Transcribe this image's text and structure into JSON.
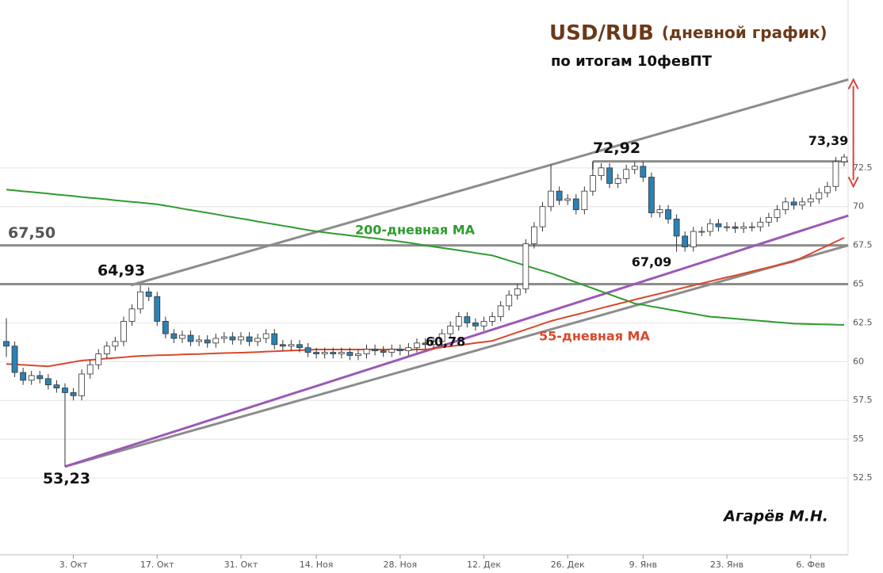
{
  "chart_data": {
    "type": "candlestick",
    "title": "USD/RUB",
    "title_note": "(дневной график)",
    "subtitle": "по итогам 10февПТ",
    "author": "Агарёв М.Н.",
    "categories": [
      null,
      null,
      null,
      null,
      null,
      null,
      null,
      null,
      "3. Окт",
      null,
      null,
      null,
      null,
      null,
      null,
      null,
      null,
      null,
      "17. Окт",
      null,
      null,
      null,
      null,
      null,
      null,
      null,
      null,
      null,
      "31. Окт",
      null,
      null,
      null,
      null,
      null,
      null,
      null,
      null,
      "14. Ноя",
      null,
      null,
      null,
      null,
      null,
      null,
      null,
      null,
      null,
      "28. Ноя",
      null,
      null,
      null,
      null,
      null,
      null,
      null,
      null,
      null,
      "12. Дек",
      null,
      null,
      null,
      null,
      null,
      null,
      null,
      null,
      null,
      "26. Дек",
      null,
      null,
      null,
      null,
      null,
      null,
      null,
      null,
      "9. Янв",
      null,
      null,
      null,
      null,
      null,
      null,
      null,
      null,
      null,
      "23. Янв",
      null,
      null,
      null,
      null,
      null,
      null,
      null,
      null,
      null,
      "6. Фев",
      null,
      null,
      null,
      null
    ],
    "candles": {
      "up_color": "#ffffff",
      "down_color": "#2a82b5",
      "edge_color": "#333333",
      "open": [
        61.3,
        61.0,
        59.3,
        58.8,
        59.1,
        58.9,
        58.5,
        58.3,
        58.0,
        57.8,
        59.2,
        59.8,
        60.5,
        61.0,
        61.3,
        62.6,
        63.4,
        64.5,
        64.2,
        62.6,
        61.8,
        61.5,
        61.7,
        61.3,
        61.4,
        61.2,
        61.5,
        61.6,
        61.4,
        61.6,
        61.3,
        61.5,
        61.8,
        61.1,
        61.0,
        61.1,
        60.9,
        60.6,
        60.5,
        60.6,
        60.5,
        60.6,
        60.4,
        60.5,
        60.8,
        60.7,
        60.6,
        60.8,
        60.7,
        60.9,
        61.2,
        61.1,
        61.3,
        61.8,
        62.3,
        62.9,
        62.5,
        62.3,
        62.6,
        62.9,
        63.6,
        64.3,
        64.7,
        67.6,
        68.7,
        70.0,
        71.0,
        70.4,
        70.5,
        69.8,
        71.0,
        72.0,
        72.5,
        71.5,
        71.8,
        72.4,
        72.6,
        71.9,
        69.6,
        69.8,
        69.2,
        68.1,
        67.4,
        68.4,
        68.4,
        68.9,
        68.7,
        68.7,
        68.6,
        68.7,
        68.7,
        69.0,
        69.3,
        69.8,
        70.3,
        70.1,
        70.3,
        70.5,
        70.9,
        71.3,
        72.9
      ],
      "high": [
        62.8,
        61.3,
        59.6,
        59.4,
        59.4,
        59.2,
        58.8,
        58.6,
        58.3,
        59.5,
        60.1,
        60.8,
        61.3,
        61.6,
        62.9,
        63.7,
        64.93,
        64.8,
        64.5,
        62.9,
        62.1,
        62.0,
        62.0,
        61.7,
        61.7,
        61.8,
        61.9,
        61.9,
        61.9,
        61.9,
        61.8,
        62.1,
        62.1,
        61.4,
        61.4,
        61.4,
        61.2,
        60.9,
        60.9,
        60.9,
        60.9,
        60.9,
        60.8,
        61.1,
        61.1,
        61.0,
        61.1,
        61.1,
        61.2,
        61.5,
        61.5,
        61.6,
        62.1,
        62.6,
        63.2,
        63.2,
        62.8,
        62.9,
        63.2,
        63.9,
        64.6,
        65.0,
        67.9,
        69.0,
        70.3,
        72.7,
        71.3,
        70.8,
        70.8,
        71.3,
        72.92,
        72.8,
        72.8,
        72.1,
        72.7,
        72.9,
        72.9,
        72.2,
        70.1,
        70.1,
        69.5,
        68.4,
        68.7,
        68.7,
        69.2,
        69.2,
        69.0,
        69.0,
        69.0,
        69.0,
        69.3,
        69.6,
        70.1,
        70.6,
        70.6,
        70.6,
        70.8,
        71.2,
        71.6,
        73.2,
        73.39
      ],
      "low": [
        60.3,
        59.0,
        58.5,
        58.5,
        58.6,
        58.2,
        58.0,
        53.23,
        57.5,
        57.5,
        58.9,
        59.5,
        60.2,
        60.7,
        61.0,
        62.3,
        63.1,
        63.9,
        62.3,
        61.5,
        61.2,
        61.2,
        61.0,
        61.0,
        60.9,
        60.9,
        61.2,
        61.1,
        61.1,
        61.0,
        61.0,
        61.2,
        60.8,
        60.7,
        60.7,
        60.6,
        60.3,
        60.2,
        60.2,
        60.2,
        60.2,
        60.1,
        60.1,
        60.2,
        60.4,
        60.3,
        60.3,
        60.4,
        60.4,
        60.6,
        60.8,
        60.8,
        61.0,
        61.5,
        62.0,
        62.2,
        62.0,
        62.0,
        62.3,
        62.6,
        63.3,
        64.0,
        64.4,
        67.3,
        68.4,
        69.7,
        70.1,
        70.1,
        69.5,
        69.5,
        70.7,
        71.7,
        71.2,
        71.2,
        71.5,
        72.1,
        71.6,
        69.3,
        69.3,
        68.9,
        67.09,
        67.1,
        67.1,
        68.1,
        68.1,
        68.4,
        68.4,
        68.3,
        68.3,
        68.4,
        68.4,
        68.7,
        69.0,
        69.5,
        69.8,
        69.8,
        70.0,
        70.2,
        70.6,
        71.0,
        72.6
      ],
      "close": [
        61.0,
        59.3,
        58.8,
        59.1,
        58.9,
        58.5,
        58.3,
        58.0,
        57.8,
        59.2,
        59.8,
        60.5,
        61.0,
        61.3,
        62.6,
        63.4,
        64.5,
        64.2,
        62.6,
        61.8,
        61.5,
        61.7,
        61.3,
        61.4,
        61.2,
        61.5,
        61.6,
        61.4,
        61.6,
        61.3,
        61.5,
        61.8,
        61.1,
        61.0,
        61.1,
        60.9,
        60.6,
        60.5,
        60.6,
        60.5,
        60.6,
        60.4,
        60.5,
        60.8,
        60.7,
        60.6,
        60.8,
        60.7,
        60.9,
        61.2,
        61.1,
        61.3,
        61.8,
        62.3,
        62.9,
        62.5,
        62.3,
        62.6,
        62.9,
        63.6,
        64.3,
        64.7,
        67.6,
        68.7,
        70.0,
        71.0,
        70.4,
        70.5,
        69.8,
        71.0,
        72.0,
        72.5,
        71.5,
        71.8,
        72.4,
        72.6,
        71.9,
        69.6,
        69.8,
        69.2,
        68.1,
        67.4,
        68.4,
        68.4,
        68.9,
        68.7,
        68.7,
        68.6,
        68.7,
        68.7,
        69.0,
        69.3,
        69.8,
        70.3,
        70.1,
        70.3,
        70.5,
        70.9,
        71.3,
        72.9,
        73.2
      ]
    },
    "moving_averages": [
      {
        "name": "200-дневная MA",
        "color": "#2e9b2e",
        "values": [
          71.1,
          71.05,
          70.99,
          70.94,
          70.89,
          70.84,
          70.78,
          70.73,
          70.68,
          70.62,
          70.57,
          70.52,
          70.47,
          70.41,
          70.36,
          70.31,
          70.26,
          70.2,
          70.15,
          70.06,
          69.97,
          69.87,
          69.78,
          69.69,
          69.6,
          69.51,
          69.41,
          69.32,
          69.23,
          69.14,
          69.04,
          68.95,
          68.86,
          68.77,
          68.68,
          68.58,
          68.49,
          68.4,
          68.34,
          68.27,
          68.21,
          68.14,
          68.08,
          68.01,
          67.95,
          67.88,
          67.82,
          67.75,
          67.67,
          67.59,
          67.5,
          67.42,
          67.34,
          67.26,
          67.18,
          67.1,
          67.01,
          66.93,
          66.85,
          66.69,
          66.52,
          66.36,
          66.19,
          66.03,
          65.86,
          65.7,
          65.51,
          65.31,
          65.12,
          64.92,
          64.73,
          64.53,
          64.34,
          64.14,
          63.95,
          63.75,
          63.66,
          63.56,
          63.47,
          63.37,
          63.28,
          63.18,
          63.09,
          62.99,
          62.9,
          62.86,
          62.81,
          62.77,
          62.72,
          62.68,
          62.63,
          62.59,
          62.54,
          62.5,
          62.45,
          62.44,
          62.42,
          62.41,
          62.4,
          62.38,
          62.37
        ]
      },
      {
        "name": "55-дневная MA",
        "color": "#d9482b",
        "values": [
          59.85,
          59.82,
          59.79,
          59.76,
          59.73,
          59.7,
          59.79,
          59.88,
          59.98,
          60.07,
          60.11,
          60.16,
          60.2,
          60.24,
          60.28,
          60.33,
          60.37,
          60.39,
          60.41,
          60.42,
          60.44,
          60.46,
          60.48,
          60.49,
          60.51,
          60.53,
          60.55,
          60.56,
          60.58,
          60.6,
          60.62,
          60.65,
          60.67,
          60.69,
          60.71,
          60.73,
          60.76,
          60.78,
          60.78,
          60.78,
          60.78,
          60.78,
          60.78,
          60.78,
          60.78,
          60.78,
          60.78,
          60.78,
          60.78,
          60.78,
          60.78,
          60.85,
          60.92,
          60.99,
          61.06,
          61.13,
          61.2,
          61.27,
          61.34,
          61.52,
          61.71,
          61.89,
          62.07,
          62.25,
          62.44,
          62.62,
          62.76,
          62.9,
          63.03,
          63.17,
          63.31,
          63.45,
          63.59,
          63.72,
          63.86,
          64.0,
          64.13,
          64.26,
          64.39,
          64.52,
          64.66,
          64.79,
          64.92,
          65.05,
          65.18,
          65.31,
          65.44,
          65.56,
          65.69,
          65.82,
          65.95,
          66.08,
          66.21,
          66.33,
          66.46,
          66.72,
          66.97,
          67.23,
          67.48,
          67.74,
          67.99
        ]
      }
    ],
    "trend_lines": [
      {
        "color": "#8c8c8c",
        "from": [
          14.85,
          64.93
        ],
        "to": [
          100.5,
          78.2
        ]
      },
      {
        "color": "#8c8c8c",
        "from": [
          7,
          53.23
        ],
        "to": [
          100.5,
          67.5
        ]
      },
      {
        "color": "#9b59b6",
        "from": [
          7,
          53.23
        ],
        "to": [
          100.5,
          69.42
        ]
      }
    ],
    "levels": [
      {
        "value": 67.5,
        "label": "67,50"
      },
      {
        "value": 65
      },
      {
        "value": 72.92,
        "start": 70
      }
    ],
    "range_arrow": {
      "color": "#d9443a",
      "x": 101.1,
      "from": 71.3,
      "to": 78.2
    },
    "point_labels": [
      {
        "text": "73,39",
        "value": 73.39
      },
      {
        "text": "72,92",
        "value": 72.92
      },
      {
        "text": "64,93",
        "value": 64.93
      },
      {
        "text": "53,23",
        "value": 53.23
      },
      {
        "text": "67,09",
        "value": 67.09
      },
      {
        "text": "60,78",
        "value": 60.78
      }
    ],
    "ylim": [
      47.54,
      83.33
    ],
    "yticks": [
      52.5,
      55,
      57.5,
      60,
      62.5,
      65,
      67.5,
      70,
      72.5
    ],
    "grid": true
  }
}
